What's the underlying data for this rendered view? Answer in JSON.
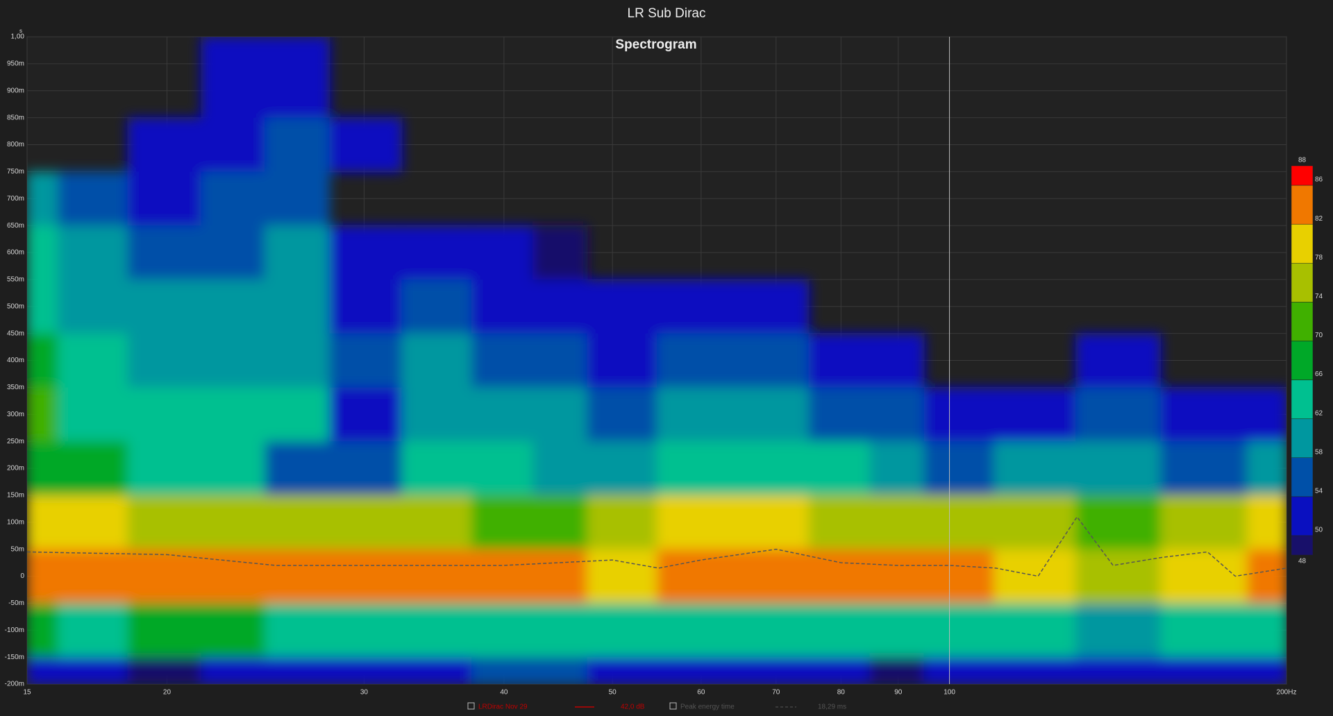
{
  "chart_data": {
    "type": "spectrogram",
    "title": "LR Sub Dirac",
    "subtitle": "Spectrogram",
    "y_unit": "s",
    "xlog": true,
    "grid": true,
    "xlim": [
      15,
      200
    ],
    "xticks": [
      15,
      20,
      30,
      40,
      50,
      60,
      70,
      80,
      90,
      100,
      {
        "value": 200,
        "label": "200Hz"
      }
    ],
    "ylim": [
      -0.2,
      1.0
    ],
    "yticks": [
      {
        "value": 1.0,
        "label": "1,00"
      },
      {
        "value": 0.95,
        "label": "950m"
      },
      {
        "value": 0.9,
        "label": "900m"
      },
      {
        "value": 0.85,
        "label": "850m"
      },
      {
        "value": 0.8,
        "label": "800m"
      },
      {
        "value": 0.75,
        "label": "750m"
      },
      {
        "value": 0.7,
        "label": "700m"
      },
      {
        "value": 0.65,
        "label": "650m"
      },
      {
        "value": 0.6,
        "label": "600m"
      },
      {
        "value": 0.55,
        "label": "550m"
      },
      {
        "value": 0.5,
        "label": "500m"
      },
      {
        "value": 0.45,
        "label": "450m"
      },
      {
        "value": 0.4,
        "label": "400m"
      },
      {
        "value": 0.35,
        "label": "350m"
      },
      {
        "value": 0.3,
        "label": "300m"
      },
      {
        "value": 0.25,
        "label": "250m"
      },
      {
        "value": 0.2,
        "label": "200m"
      },
      {
        "value": 0.15,
        "label": "150m"
      },
      {
        "value": 0.1,
        "label": "100m"
      },
      {
        "value": 0.05,
        "label": "50m"
      },
      0,
      {
        "value": -0.05,
        "label": "-50m"
      },
      {
        "value": -0.1,
        "label": "-100m"
      },
      {
        "value": -0.15,
        "label": "-150m"
      },
      {
        "value": -0.2,
        "label": "-200m"
      }
    ],
    "cursor_freq": 100,
    "freqs": [
      15,
      17,
      20,
      23,
      26,
      30,
      35,
      40,
      45,
      50,
      60,
      70,
      80,
      90,
      100,
      120,
      140,
      170,
      200
    ],
    "times": [
      0.9,
      0.8,
      0.7,
      0.6,
      0.5,
      0.4,
      0.3,
      0.2,
      0.1,
      0.0,
      -0.1,
      -0.2
    ],
    "z": [
      [
        null,
        null,
        null,
        51,
        52,
        null,
        null,
        null,
        null,
        null,
        null,
        null,
        null,
        null,
        null,
        null,
        null,
        null,
        null
      ],
      [
        null,
        null,
        51,
        53,
        55,
        51,
        null,
        null,
        null,
        null,
        null,
        null,
        null,
        null,
        null,
        null,
        null,
        null,
        null
      ],
      [
        60,
        56,
        54,
        56,
        58,
        null,
        null,
        null,
        null,
        null,
        null,
        null,
        null,
        null,
        null,
        null,
        null,
        null,
        null
      ],
      [
        64,
        60,
        58,
        58,
        60,
        52,
        52,
        51,
        50,
        null,
        null,
        null,
        null,
        null,
        null,
        null,
        null,
        null,
        null
      ],
      [
        66,
        62,
        60,
        60,
        62,
        54,
        56,
        54,
        54,
        52,
        52,
        51,
        null,
        null,
        null,
        null,
        null,
        null,
        null
      ],
      [
        68,
        64,
        62,
        62,
        62,
        56,
        60,
        56,
        56,
        54,
        58,
        56,
        53,
        54,
        null,
        null,
        52,
        null,
        null
      ],
      [
        74,
        66,
        64,
        64,
        64,
        52,
        62,
        60,
        60,
        58,
        62,
        60,
        58,
        58,
        52,
        54,
        56,
        54,
        54
      ],
      [
        70,
        68,
        66,
        66,
        58,
        58,
        64,
        64,
        62,
        62,
        66,
        66,
        64,
        62,
        58,
        60,
        60,
        58,
        62
      ],
      [
        80,
        80,
        78,
        78,
        76,
        76,
        76,
        74,
        74,
        76,
        82,
        80,
        78,
        78,
        76,
        76,
        74,
        76,
        80
      ],
      [
        84,
        86,
        86,
        84,
        84,
        86,
        86,
        86,
        84,
        82,
        84,
        84,
        84,
        84,
        86,
        80,
        78,
        82,
        86
      ],
      [
        68,
        66,
        68,
        68,
        64,
        66,
        66,
        66,
        64,
        66,
        66,
        66,
        64,
        64,
        64,
        64,
        62,
        64,
        64
      ],
      [
        52,
        52,
        50,
        54,
        52,
        54,
        54,
        56,
        58,
        54,
        54,
        52,
        52,
        50,
        54,
        52,
        52,
        52,
        52
      ]
    ],
    "colorbar": {
      "ticks": [
        48,
        50,
        54,
        58,
        62,
        66,
        70,
        74,
        78,
        82,
        86,
        88
      ],
      "colors": [
        "#18106a",
        "#0a10c0",
        "#0050a8",
        "#00979f",
        "#00c090",
        "#00a828",
        "#40b000",
        "#a8c000",
        "#e8d000",
        "#f07800",
        "#ff0000"
      ]
    },
    "measurement": {
      "name": "LRDirac Nov 29",
      "level": "42,0 dB",
      "color": "#c00000"
    },
    "series": [
      {
        "name": "Peak energy time",
        "value_label": "18,29 ms",
        "color": "#555555",
        "x": [
          15,
          20,
          25,
          30,
          40,
          50,
          55,
          60,
          70,
          80,
          90,
          100,
          110,
          120,
          130,
          140,
          155,
          170,
          180,
          200
        ],
        "values": [
          0.045,
          0.04,
          0.02,
          0.02,
          0.02,
          0.03,
          0.015,
          0.03,
          0.05,
          0.025,
          0.02,
          0.02,
          0.015,
          0.0,
          0.11,
          0.02,
          0.035,
          0.045,
          0.0,
          0.015
        ]
      }
    ]
  }
}
